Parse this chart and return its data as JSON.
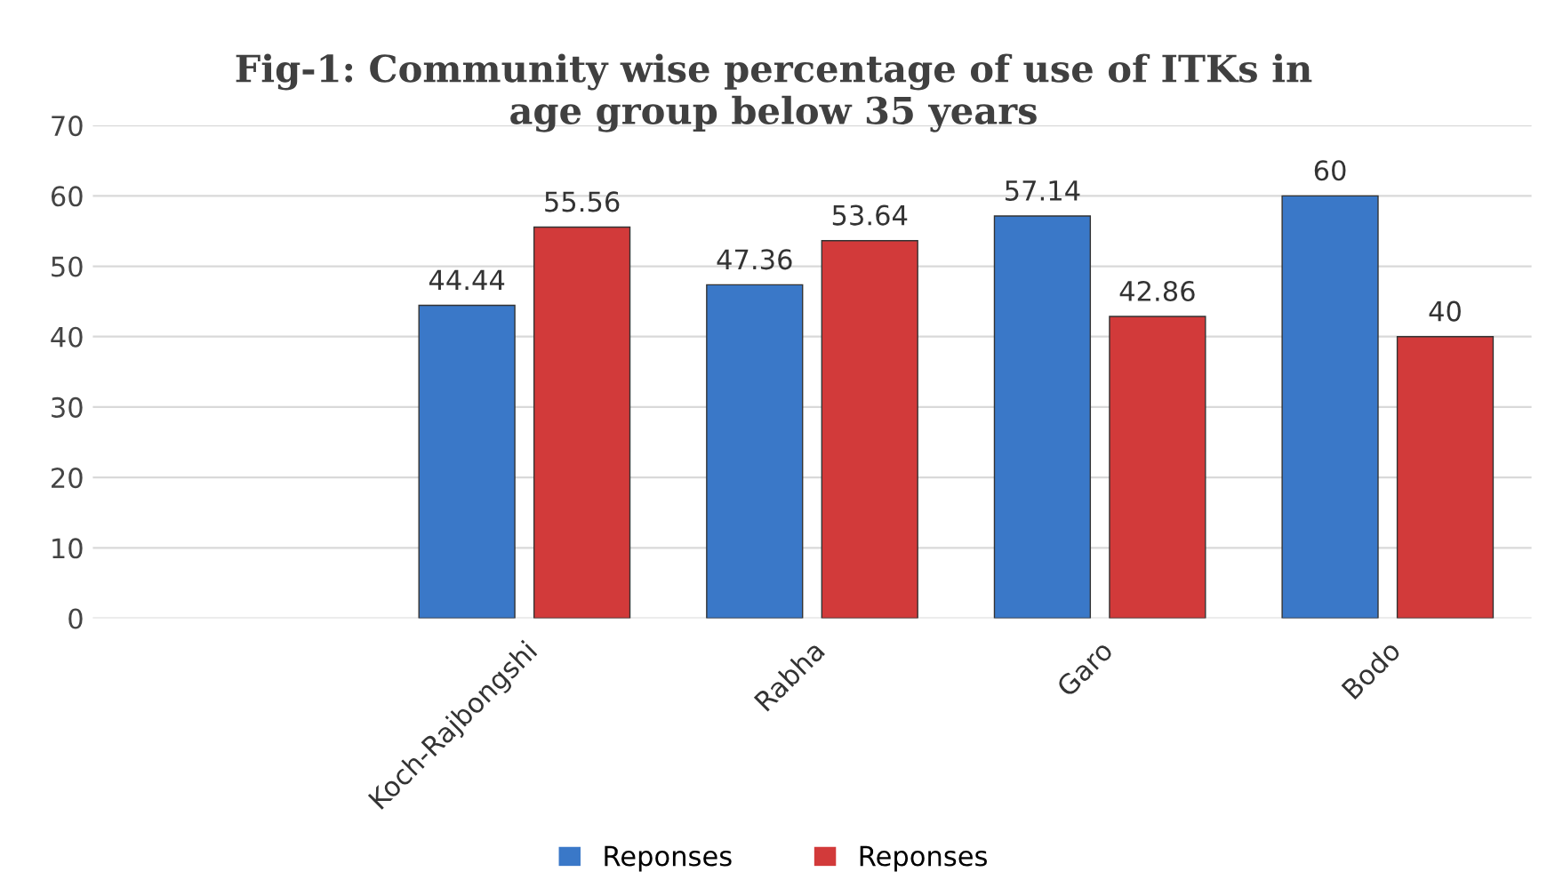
{
  "chart_data": {
    "type": "bar",
    "title": "Fig-1: Community wise percentage of use of ITKs in\nage group below 35 years",
    "categories": [
      null,
      "Koch-Rajbongshi",
      "Rabha",
      "Garo",
      "Bodo"
    ],
    "series": [
      {
        "name": "Reponses",
        "color": "#3a78c8",
        "values": [
          null,
          44.44,
          47.36,
          57.14,
          60
        ]
      },
      {
        "name": "Reponses",
        "color": "#d23a3a",
        "values": [
          null,
          55.56,
          53.64,
          42.86,
          40
        ]
      }
    ],
    "ylim": [
      0,
      70
    ],
    "yticks": [
      0,
      10,
      20,
      30,
      40,
      50,
      60,
      70
    ],
    "grid": "y",
    "legend": "bottom",
    "data_labels": true
  }
}
